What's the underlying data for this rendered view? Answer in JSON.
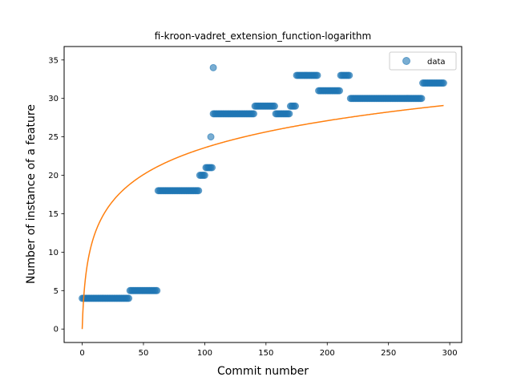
{
  "chart_data": {
    "type": "scatter",
    "title": "fi-kroon-vadret_extension_function-logarithm",
    "xlabel": "Commit number",
    "ylabel": "Number of instance of a feature",
    "xlim": [
      -14.75,
      309.75
    ],
    "ylim": [
      -1.75,
      36.75
    ],
    "x_ticks": [
      0,
      50,
      100,
      150,
      200,
      250,
      300
    ],
    "y_ticks": [
      0,
      5,
      10,
      15,
      20,
      25,
      30,
      35
    ],
    "legend": {
      "position": "top-right",
      "entries": [
        "data"
      ]
    },
    "colors": {
      "data": "#1f77b4",
      "fit": "#ff7f0e"
    },
    "series": [
      {
        "name": "data",
        "kind": "scatter",
        "segments": [
          {
            "x_start": 0,
            "x_end": 38,
            "y": 4
          },
          {
            "x_start": 39,
            "x_end": 61,
            "y": 5
          },
          {
            "x_start": 62,
            "x_end": 95,
            "y": 18
          },
          {
            "x_start": 96,
            "x_end": 100,
            "y": 20
          },
          {
            "x_start": 101,
            "x_end": 106,
            "y": 21
          },
          {
            "x_start": 107,
            "x_end": 140,
            "y": 28
          },
          {
            "x_start": 141,
            "x_end": 157,
            "y": 29
          },
          {
            "x_start": 158,
            "x_end": 169,
            "y": 28
          },
          {
            "x_start": 170,
            "x_end": 174,
            "y": 29
          },
          {
            "x_start": 175,
            "x_end": 192,
            "y": 33
          },
          {
            "x_start": 193,
            "x_end": 210,
            "y": 31
          },
          {
            "x_start": 211,
            "x_end": 218,
            "y": 33
          },
          {
            "x_start": 219,
            "x_end": 277,
            "y": 30
          },
          {
            "x_start": 278,
            "x_end": 295,
            "y": 32
          }
        ],
        "points": [
          {
            "x": 105,
            "y": 25
          },
          {
            "x": 107,
            "y": 34
          }
        ]
      },
      {
        "name": "",
        "kind": "line",
        "function": "a*ln(x+1)",
        "coefficient": 5.11,
        "x_range": [
          0,
          295
        ]
      }
    ]
  }
}
